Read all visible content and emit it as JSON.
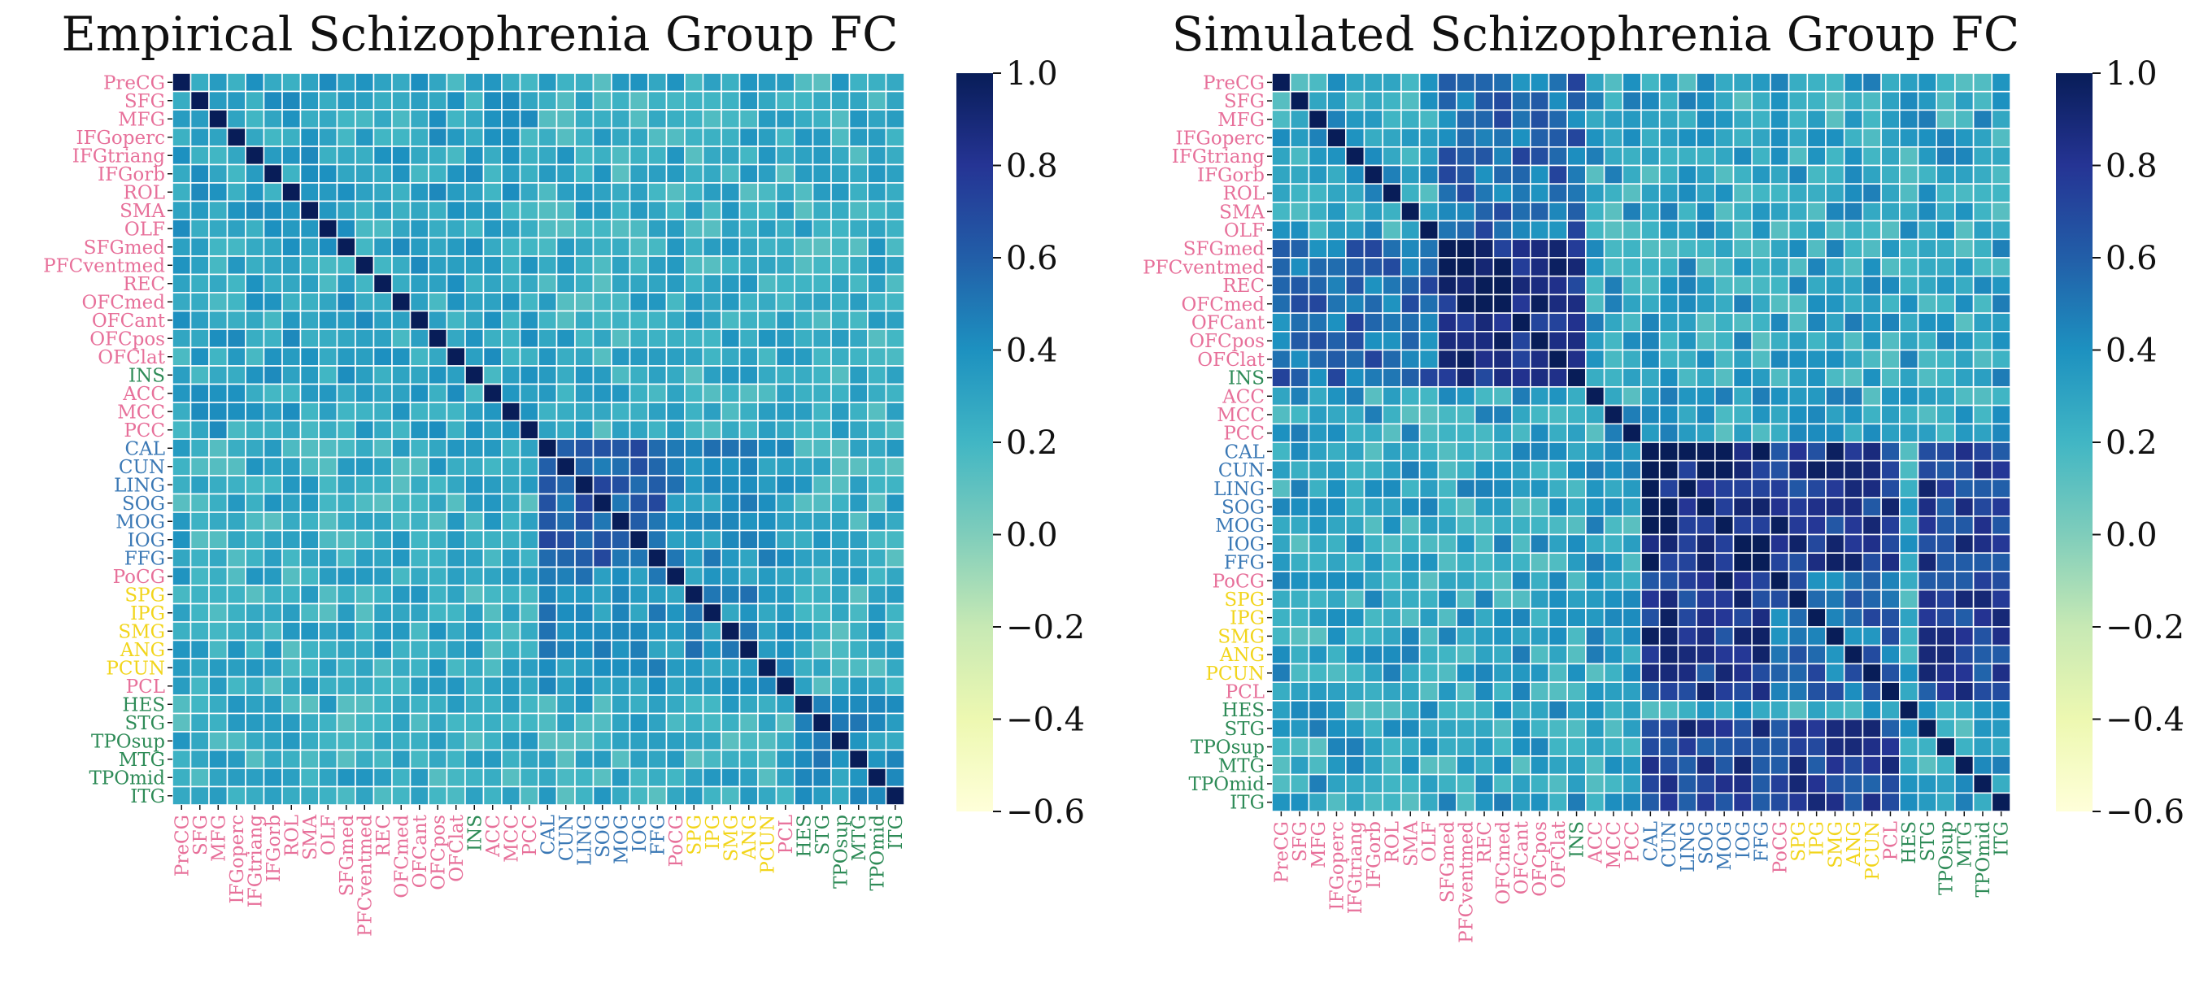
{
  "figure": {
    "type": "heatmap",
    "panels": [
      "empirical",
      "simulated"
    ]
  },
  "region_labels": [
    "PreCG",
    "SFG",
    "MFG",
    "IFGoperc",
    "IFGtriang",
    "IFGorb",
    "ROL",
    "SMA",
    "OLF",
    "SFGmed",
    "PFCventmed",
    "REC",
    "OFCmed",
    "OFCant",
    "OFCpos",
    "OFClat",
    "INS",
    "ACC",
    "MCC",
    "PCC",
    "CAL",
    "CUN",
    "LING",
    "SOG",
    "MOG",
    "IOG",
    "FFG",
    "PoCG",
    "SPG",
    "IPG",
    "SMG",
    "ANG",
    "PCUN",
    "PCL",
    "HES",
    "STG",
    "TPOsup",
    "MTG",
    "TPOmid",
    "ITG"
  ],
  "region_groups": [
    "pink",
    "pink",
    "pink",
    "pink",
    "pink",
    "pink",
    "pink",
    "pink",
    "pink",
    "pink",
    "pink",
    "pink",
    "pink",
    "pink",
    "pink",
    "pink",
    "green",
    "pink",
    "pink",
    "pink",
    "blue",
    "blue",
    "blue",
    "blue",
    "blue",
    "blue",
    "blue",
    "pink",
    "yellow",
    "yellow",
    "yellow",
    "yellow",
    "yellow",
    "pink",
    "green",
    "green",
    "green",
    "green",
    "green",
    "green"
  ],
  "group_colors": {
    "pink": "#e7709a",
    "green": "#2e8b57",
    "blue": "#3a78b5",
    "yellow": "#f2d51c"
  },
  "colormap": {
    "name": "YlGnBu",
    "vmin": -0.6,
    "vmax": 1.0,
    "stops": [
      "#ffffd9",
      "#edf8b1",
      "#c7e9b4",
      "#7fcdbb",
      "#41b6c4",
      "#1d91c0",
      "#225ea8",
      "#253494",
      "#081d58"
    ]
  },
  "colorbar_ticks": [
    "1.0",
    "0.8",
    "0.6",
    "0.4",
    "0.2",
    "0.0",
    "−0.2",
    "−0.4",
    "−0.6"
  ],
  "chart_data": [
    {
      "type": "heatmap",
      "title": "Empirical Schizophrenia Group FC",
      "rows": "region_labels",
      "cols": "region_labels",
      "diagonal": 1.0,
      "base": 0.25,
      "block_means": [
        {
          "rows": [
            0,
            19
          ],
          "cols": [
            0,
            19
          ],
          "value": 0.3
        },
        {
          "rows": [
            20,
            26
          ],
          "cols": [
            20,
            26
          ],
          "value": 0.6
        },
        {
          "rows": [
            27,
            33
          ],
          "cols": [
            27,
            33
          ],
          "value": 0.4
        },
        {
          "rows": [
            34,
            39
          ],
          "cols": [
            34,
            39
          ],
          "value": 0.38
        },
        {
          "rows": [
            20,
            26
          ],
          "cols": [
            27,
            33
          ],
          "value": 0.4
        }
      ],
      "value_range": [
        0.05,
        1.0
      ]
    },
    {
      "type": "heatmap",
      "title": "Simulated Schizophrenia Group FC",
      "rows": "region_labels",
      "cols": "region_labels",
      "diagonal": 1.0,
      "base": 0.3,
      "block_means": [
        {
          "rows": [
            9,
            16
          ],
          "cols": [
            9,
            16
          ],
          "value": 0.85
        },
        {
          "rows": [
            20,
            26
          ],
          "cols": [
            20,
            26
          ],
          "value": 0.9
        },
        {
          "rows": [
            20,
            26
          ],
          "cols": [
            27,
            33
          ],
          "value": 0.8
        },
        {
          "rows": [
            27,
            33
          ],
          "cols": [
            27,
            33
          ],
          "value": 0.55
        },
        {
          "rows": [
            35,
            39
          ],
          "cols": [
            20,
            33
          ],
          "value": 0.75
        },
        {
          "rows": [
            0,
            8
          ],
          "cols": [
            9,
            16
          ],
          "value": 0.55
        }
      ],
      "value_range": [
        -0.3,
        1.0
      ]
    }
  ]
}
